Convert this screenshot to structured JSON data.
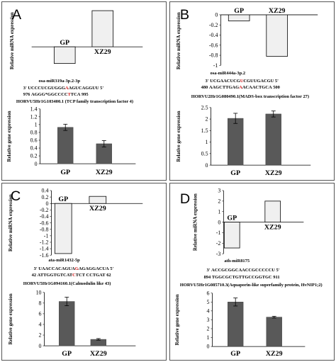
{
  "panels": [
    {
      "id": "A",
      "label": "A",
      "mirna_name": "osa-miR319a-3p.2-3p",
      "seq_top": {
        "prime5": "3'",
        "pre": "UCCCUCGUGGG",
        "mm": "A",
        "post": "AGUCAGGUU",
        "prime3": "5'"
      },
      "seq_bottom": {
        "start": "976",
        "pre": "AGGG*GGCCCC",
        "mm": "T",
        "post": "TCA",
        "end": "995"
      },
      "gene_title": "HORVU5Hr1G103400.1 (TCP family transcription factor 4)"
    },
    {
      "id": "B",
      "label": "B",
      "mirna_name": "osa-miR444a-3p.2",
      "seq_top": {
        "prime5": "3'",
        "pre": "UCGAACUCG",
        "mm": "U",
        "post": "CGUUGACGU",
        "prime3": "5'"
      },
      "seq_bottom": {
        "start": "480",
        "pre": "AAGCTTGAG",
        "mm": "A",
        "post": "ACAACTGCA",
        "end": "500"
      },
      "gene_title": "HORVU2Hr1G080490.1(MADS-box transcription factor 27)"
    },
    {
      "id": "C",
      "label": "C",
      "mirna_name": "ata-miR1432-5p",
      "seq_top": {
        "prime5": "3'",
        "pre": "UAACCACAGUA",
        "mm": "G",
        "post": "AGAGGACUA",
        "prime3": "5'"
      },
      "seq_bottom": {
        "start": "42",
        "pre": "ATTGGTGTCAT",
        "mm": "C",
        "post": "TCT CCTGAT",
        "end": "62"
      },
      "gene_title": "HORVU5Hr1G094160.1(Calmodulin like 43)"
    },
    {
      "id": "D",
      "label": "D",
      "mirna_name": "ath-miR8175",
      "seq_top": {
        "prime5": "3'",
        "pre": "ACCGCGGCAACCGCCCCCU",
        "mm": "",
        "post": "",
        "prime3": "5'"
      },
      "seq_bottom": {
        "start": "894",
        "pre": "TGGCGCTGTTGCCGGTGC",
        "mm": "",
        "post": "",
        "end": "911"
      },
      "gene_title": "HORVU5Hr1G085710.3(Aquaporin-like superfamily protein, HvNIP1;2)"
    }
  ],
  "chart_data": [
    {
      "panel": "A",
      "role": "mirna",
      "type": "bar",
      "ylabel": "Relative miRNA expression",
      "categories": [
        "GP",
        "XZ29"
      ],
      "values": [
        -0.35,
        0.76
      ],
      "yticks": [],
      "ylim": [
        -0.42,
        0.82
      ],
      "bar_style": "light",
      "error": []
    },
    {
      "panel": "A",
      "role": "gene",
      "type": "bar",
      "ylabel": "Relative gene expression",
      "categories": [
        "GP",
        "XZ29"
      ],
      "values": [
        0.93,
        0.51
      ],
      "error": [
        0.08,
        0.08
      ],
      "yticks": [
        "0",
        "0.2",
        "0.4",
        "0.6",
        "0.8",
        "1",
        "1.2",
        "1.4"
      ],
      "ylim": [
        0,
        1.4
      ],
      "bar_style": "dark"
    },
    {
      "panel": "B",
      "role": "mirna",
      "type": "bar",
      "ylabel": "Relative miRNA expression",
      "categories": [
        "GP",
        "XZ29"
      ],
      "values": [
        -0.12,
        -0.82
      ],
      "yticks": [
        "0",
        "-0.2",
        "-0.4",
        "-0.6",
        "-0.8",
        "-1"
      ],
      "ylim": [
        -1,
        0
      ],
      "bar_style": "light",
      "error": []
    },
    {
      "panel": "B",
      "role": "gene",
      "type": "bar",
      "ylabel": "Relative gene expression",
      "categories": [
        "GP",
        "XZ29"
      ],
      "values": [
        2.03,
        2.22
      ],
      "error": [
        0.22,
        0.13
      ],
      "yticks": [
        "0",
        "0.5",
        "1",
        "1.5",
        "2",
        "2.5"
      ],
      "ylim": [
        0,
        2.5
      ],
      "bar_style": "dark"
    },
    {
      "panel": "C",
      "role": "mirna",
      "type": "bar",
      "ylabel": "Relative miRNA expression",
      "categories": [
        "GP",
        "XZ29"
      ],
      "values": [
        -1.55,
        0.22
      ],
      "yticks": [
        "0.4",
        "0.2",
        "0",
        "-0.2",
        "-0.4",
        "-0.6",
        "-0.8",
        "-1",
        "-1.2",
        "-1.4",
        "-1.6"
      ],
      "ylim": [
        -1.6,
        0.4
      ],
      "bar_style": "light",
      "error": []
    },
    {
      "panel": "C",
      "role": "gene",
      "type": "bar",
      "ylabel": "Relative gene expression",
      "categories": [
        "GP",
        "XZ29"
      ],
      "values": [
        8.3,
        1.2
      ],
      "error": [
        0.8,
        0.15
      ],
      "yticks": [
        "0",
        "2",
        "4",
        "6",
        "8",
        "10"
      ],
      "ylim": [
        0,
        10
      ],
      "bar_style": "dark"
    },
    {
      "panel": "D",
      "role": "mirna",
      "type": "bar",
      "ylabel": "Relative miRNA expression",
      "categories": [
        "GP",
        "XZ29"
      ],
      "values": [
        -2.45,
        2.0
      ],
      "yticks": [
        "3",
        "2",
        "1",
        "0",
        "-1",
        "-2",
        "-3"
      ],
      "ylim": [
        -3,
        3
      ],
      "bar_style": "light",
      "error": []
    },
    {
      "panel": "D",
      "role": "gene",
      "type": "bar",
      "ylabel": "Relative gene expression",
      "categories": [
        "GP",
        "XZ29"
      ],
      "values": [
        5.0,
        3.3
      ],
      "error": [
        0.45,
        0.1
      ],
      "yticks": [
        "0",
        "1",
        "2",
        "3",
        "4",
        "5",
        "6"
      ],
      "ylim": [
        0,
        6
      ],
      "bar_style": "dark"
    }
  ]
}
